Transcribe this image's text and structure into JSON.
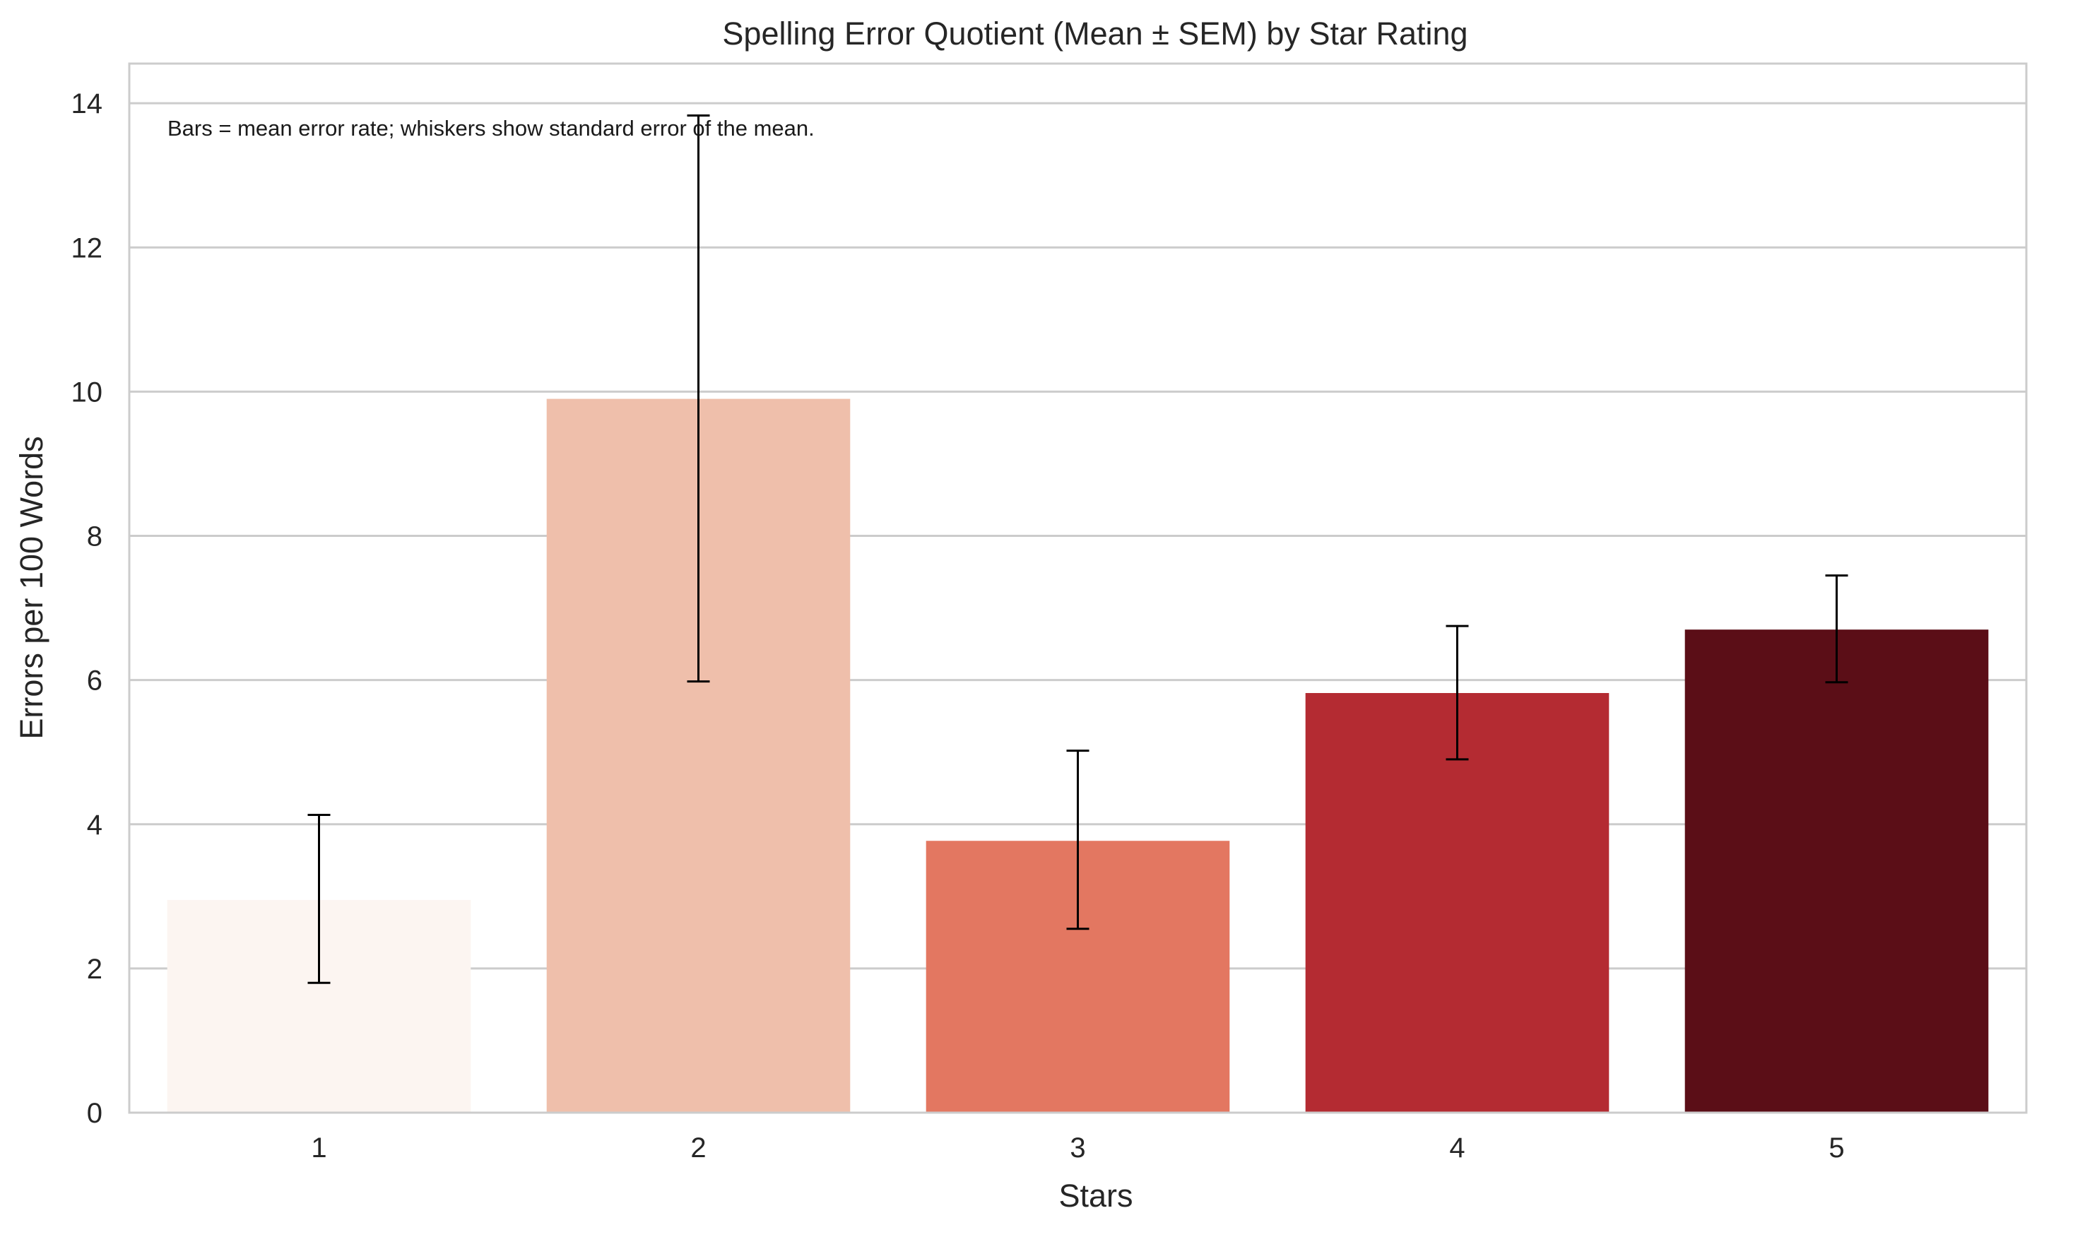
{
  "chart_data": {
    "type": "bar",
    "title": "Spelling Error Quotient (Mean ± SEM) by Star Rating",
    "xlabel": "Stars",
    "ylabel": "Errors per 100 Words",
    "annotation": "Bars = mean error rate; whiskers show standard error of the mean.",
    "categories": [
      "1",
      "2",
      "3",
      "4",
      "5"
    ],
    "values": [
      2.95,
      9.9,
      3.77,
      5.82,
      6.7
    ],
    "error_low": [
      1.8,
      5.98,
      2.55,
      4.9,
      5.97
    ],
    "error_high": [
      4.13,
      13.83,
      5.02,
      6.75,
      7.45
    ],
    "colors": [
      "#fcf5f1",
      "#efbfab",
      "#e37761",
      "#b42b32",
      "#5b0e17"
    ],
    "ylim": [
      0,
      14.55
    ],
    "yticks": [
      "0",
      "2",
      "4",
      "6",
      "8",
      "10",
      "12",
      "14"
    ],
    "grid": true,
    "legend": "none"
  }
}
